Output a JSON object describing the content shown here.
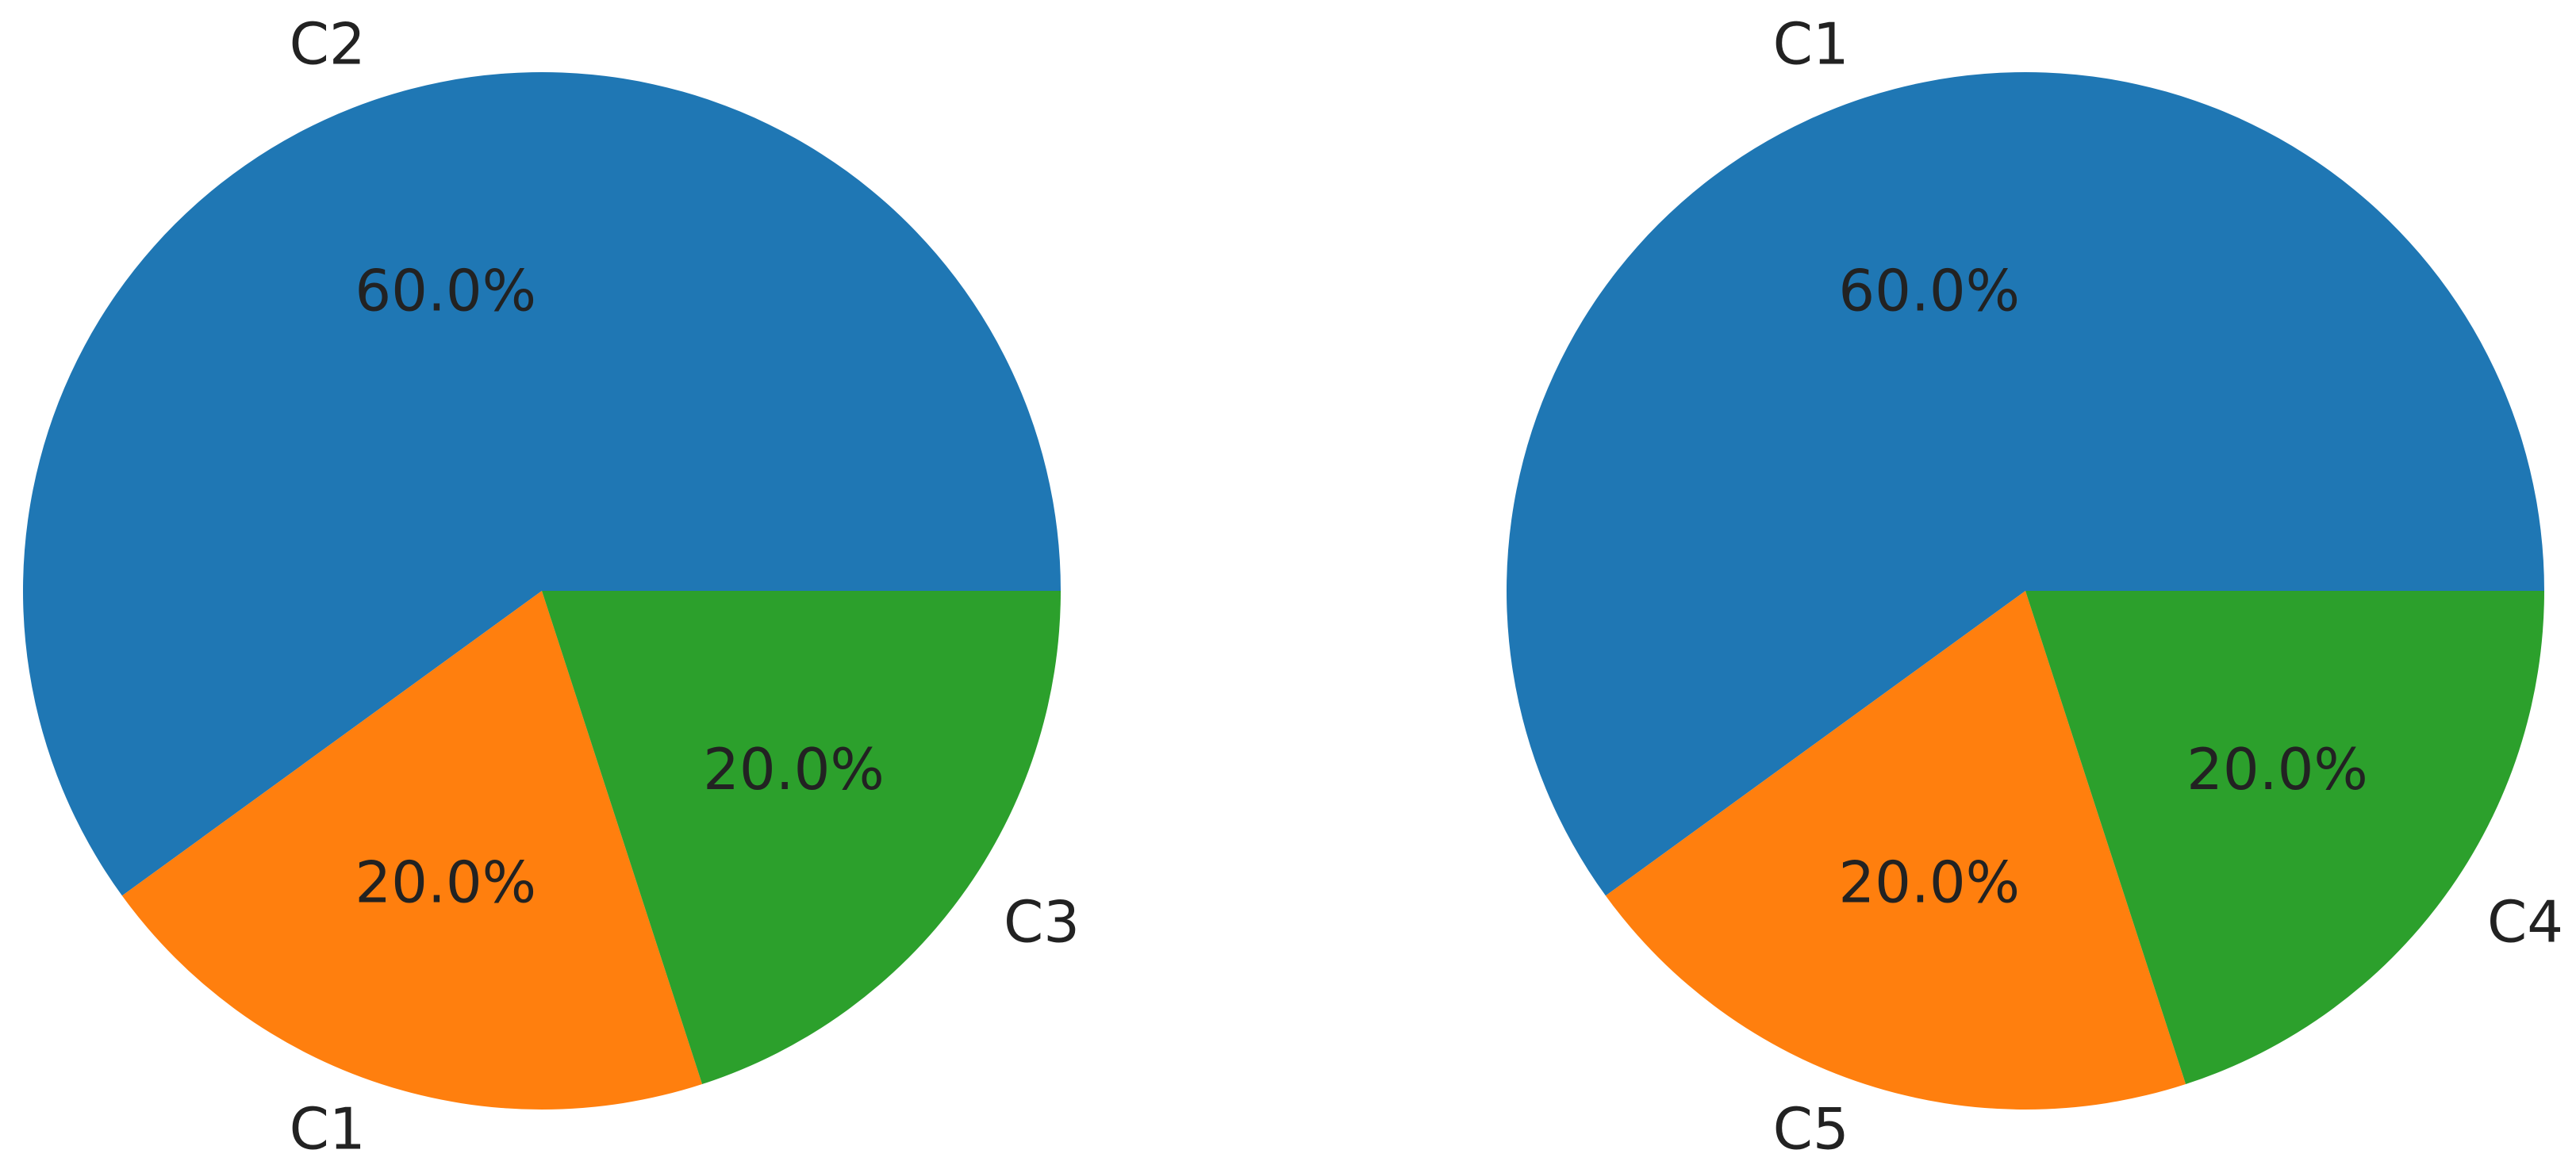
{
  "chart_data": [
    {
      "type": "pie",
      "categories": [
        "C2",
        "C1",
        "C3"
      ],
      "values": [
        60,
        20,
        20
      ],
      "value_labels": [
        "60.0%",
        "20.0%",
        "20.0%"
      ],
      "colors": [
        "#1f77b4",
        "#ff7f0e",
        "#2ca02c"
      ]
    },
    {
      "type": "pie",
      "categories": [
        "C1",
        "C5",
        "C4"
      ],
      "values": [
        60,
        20,
        20
      ],
      "value_labels": [
        "60.0%",
        "20.0%",
        "20.0%"
      ],
      "colors": [
        "#1f77b4",
        "#ff7f0e",
        "#2ca02c"
      ]
    }
  ]
}
